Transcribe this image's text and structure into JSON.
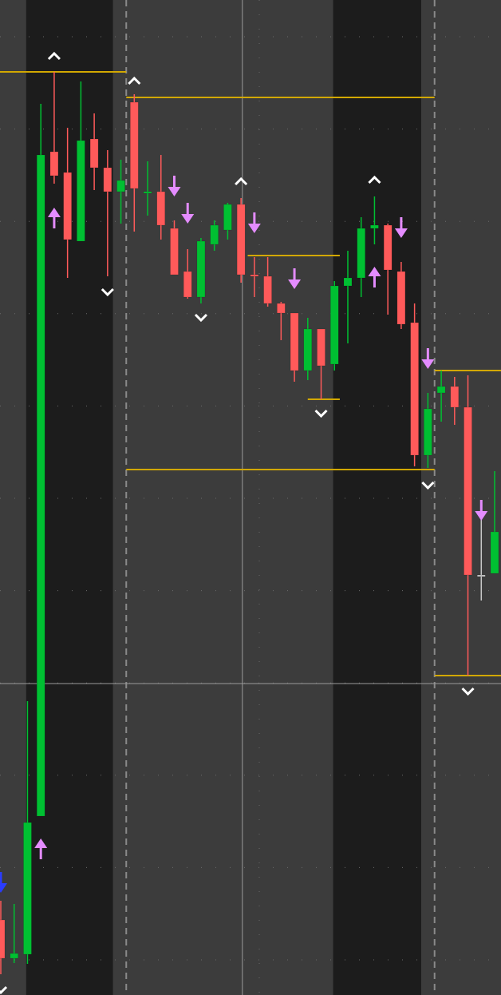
{
  "chart_data": {
    "type": "candlestick",
    "title": "",
    "xlabel": "",
    "ylabel": "",
    "grid": true,
    "colors": {
      "background": "#3c3c3c",
      "session_band": "#1c1c1c",
      "up": "#00c032",
      "down": "#ff5a5a",
      "neutral": "#c8c8c8",
      "level_line": "#d2a800",
      "caret": "#ffffff",
      "signal_arrow": "#e48cff",
      "signal_arrow_alt": "#2a3cff",
      "separator": "#8a8a8a",
      "crosshair": "#9a9a9a"
    },
    "ylim": [
      0,
      124.6
    ],
    "candles": [
      [
        9.4,
        11.8,
        2.6,
        4.6
      ],
      [
        4.6,
        11.4,
        4.0,
        5.2
      ],
      [
        5.1,
        36.8,
        3.9,
        21.6
      ],
      [
        22.4,
        111.6,
        22.4,
        105.2
      ],
      [
        105.6,
        115.6,
        101.6,
        102.6
      ],
      [
        103.0,
        108.6,
        89.8,
        94.6
      ],
      [
        94.4,
        114.4,
        94.4,
        107.0
      ],
      [
        107.2,
        110.4,
        100.8,
        103.6
      ],
      [
        103.6,
        105.8,
        90.0,
        100.6
      ],
      [
        100.6,
        104.6,
        96.6,
        102.0
      ],
      [
        111.8,
        112.8,
        95.6,
        101.0
      ],
      [
        100.4,
        104.4,
        97.6,
        100.6
      ],
      [
        100.6,
        105.2,
        94.6,
        96.4
      ],
      [
        96.0,
        97.0,
        90.2,
        90.2
      ],
      [
        90.6,
        93.4,
        87.2,
        87.4
      ],
      [
        87.4,
        94.8,
        86.6,
        94.4
      ],
      [
        94.0,
        97.0,
        93.2,
        96.4
      ],
      [
        95.8,
        99.2,
        94.6,
        99.0
      ],
      [
        99.0,
        99.8,
        89.2,
        90.2
      ],
      [
        90.2,
        92.4,
        87.4,
        90.0
      ],
      [
        90.0,
        92.4,
        86.2,
        86.6
      ],
      [
        86.6,
        86.8,
        82.0,
        85.4
      ],
      [
        85.4,
        85.4,
        76.8,
        78.2
      ],
      [
        78.2,
        84.8,
        77.0,
        83.4
      ],
      [
        83.4,
        83.4,
        74.6,
        78.8
      ],
      [
        79.0,
        89.4,
        78.2,
        88.8
      ],
      [
        88.8,
        93.2,
        81.6,
        89.8
      ],
      [
        89.8,
        97.4,
        87.4,
        96.0
      ],
      [
        96.0,
        100.0,
        94.0,
        96.4
      ],
      [
        96.4,
        96.6,
        85.2,
        90.8
      ],
      [
        90.6,
        91.8,
        83.4,
        84.0
      ],
      [
        84.2,
        86.6,
        66.2,
        67.6
      ],
      [
        67.6,
        75.4,
        66.0,
        73.4
      ],
      [
        75.4,
        78.2,
        71.8,
        76.2
      ],
      [
        76.2,
        77.4,
        71.4,
        73.6
      ],
      [
        73.6,
        77.6,
        40.0,
        52.6
      ],
      [
        52.6,
        62.0,
        49.4,
        52.6
      ],
      [
        52.8,
        65.6,
        52.8,
        58.0
      ]
    ],
    "candle_fields": [
      "open",
      "high",
      "low",
      "close"
    ],
    "swing_high_markers": [
      {
        "index": 4,
        "price": 117.6
      },
      {
        "index": 10,
        "price": 114.5
      },
      {
        "index": 18,
        "price": 101.9
      },
      {
        "index": 28,
        "price": 102.1
      }
    ],
    "swing_low_markers": [
      {
        "index": 0,
        "price": 0.6
      },
      {
        "index": 8,
        "price": 88.0
      },
      {
        "index": 15,
        "price": 84.8
      },
      {
        "index": 24,
        "price": 72.8
      },
      {
        "index": 32,
        "price": 63.8
      },
      {
        "index": 35,
        "price": 38.0
      }
    ],
    "sell_arrows": [
      {
        "index": 13,
        "price": 100.0
      },
      {
        "index": 14,
        "price": 96.6
      },
      {
        "index": 19,
        "price": 95.4
      },
      {
        "index": 22,
        "price": 88.4
      },
      {
        "index": 30,
        "price": 94.8
      },
      {
        "index": 32,
        "price": 78.4
      },
      {
        "index": 36,
        "price": 59.4
      }
    ],
    "buy_arrows": [
      {
        "index": 3,
        "price": 19.6
      },
      {
        "index": 4,
        "price": 98.6
      },
      {
        "index": 28,
        "price": 91.2
      }
    ],
    "alt_sell_arrows": [
      {
        "index": 0,
        "price": 12.8
      }
    ],
    "levels": [
      {
        "price": 115.6,
        "from": -0.1,
        "to": 9.4
      },
      {
        "price": 112.4,
        "from": 9.4,
        "to": 32.5
      },
      {
        "price": 65.8,
        "from": 9.4,
        "to": 32.5
      },
      {
        "price": 92.6,
        "from": 18.5,
        "to": 25.4
      },
      {
        "price": 74.6,
        "from": 23.0,
        "to": 25.4
      },
      {
        "price": 78.2,
        "from": 32.5,
        "to": 37.6
      },
      {
        "price": 40.0,
        "from": 32.5,
        "to": 37.6
      }
    ],
    "session_bands": [
      {
        "from": 1.9,
        "to": 8.4
      },
      {
        "from": 24.9,
        "to": 31.5
      }
    ],
    "session_separators": [
      9.4,
      32.5
    ],
    "crosshair": {
      "index": 18.1,
      "price": 39.0
    }
  }
}
